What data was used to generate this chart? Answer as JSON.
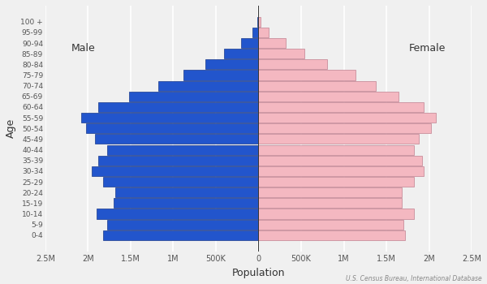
{
  "age_groups": [
    "0-4",
    "5-9",
    "10-14",
    "15-19",
    "20-24",
    "25-29",
    "30-34",
    "35-39",
    "40-44",
    "45-49",
    "50-54",
    "55-59",
    "60-64",
    "65-69",
    "70-74",
    "75-79",
    "80-84",
    "85-89",
    "90-94",
    "95-99",
    "100 +"
  ],
  "male": [
    1820000,
    1780000,
    1900000,
    1700000,
    1680000,
    1820000,
    1960000,
    1880000,
    1780000,
    1920000,
    2020000,
    2080000,
    1880000,
    1520000,
    1180000,
    880000,
    620000,
    400000,
    200000,
    75000,
    18000
  ],
  "female": [
    1720000,
    1700000,
    1820000,
    1680000,
    1680000,
    1820000,
    1940000,
    1920000,
    1820000,
    1880000,
    2020000,
    2080000,
    1940000,
    1640000,
    1380000,
    1140000,
    800000,
    540000,
    320000,
    115000,
    28000
  ],
  "male_color": "#2255cc",
  "female_color": "#f4b8c1",
  "male_edge_color": "#1a3a8a",
  "female_edge_color": "#c08090",
  "bg_color": "#f0f0f0",
  "xlabel": "Population",
  "ylabel": "Age",
  "source": "U.S. Census Bureau, International Database",
  "xlim": 2500000,
  "male_label": "Male",
  "female_label": "Female"
}
